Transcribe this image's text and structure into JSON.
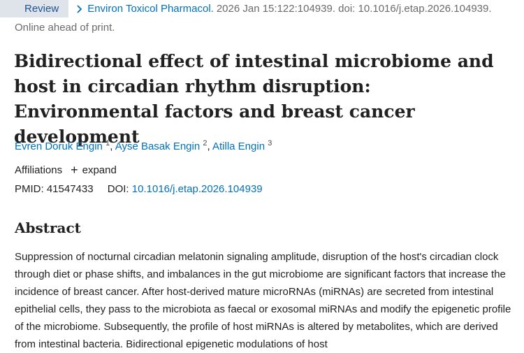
{
  "header": {
    "badge": "Review",
    "journal": "Environ Toxicol Pharmacol.",
    "citation": "2026 Jan 15:122:104939. doi: 10.1016/j.etap.2026.104939.",
    "status": "Online ahead of print."
  },
  "article": {
    "title": "Bidirectional effect of intestinal microbiome and host in circadian rhythm disruption: Environmental factors and breast cancer development",
    "authors": [
      {
        "name": "Evren Doruk Engin",
        "aff": "1"
      },
      {
        "name": "Ayse Basak Engin",
        "aff": "2"
      },
      {
        "name": "Atilla Engin",
        "aff": "3"
      }
    ],
    "affiliations_label": "Affiliations",
    "expand_label": "expand",
    "pmid_label": "PMID:",
    "pmid": "41547433",
    "doi_label": "DOI:",
    "doi": "10.1016/j.etap.2026.104939"
  },
  "abstract": {
    "heading": "Abstract",
    "text": "Suppression of nocturnal circadian melatonin signaling amplitude, disruption of the host's circadian clock through diet or phase shifts, and imbalances in the gut microbiome are significant factors that increase the incidence of breast cancer. After host-derived mature microRNAs (miRNAs) are secreted from intestinal epithelial cells, they pass to the microbiota as faecal or exosomal miRNAs and modify the epigenetic profile of the microbiome. Subsequently, the profile of host miRNAs is altered by metabolites, which are derived from intestinal bacteria. Bidirectional epigenetic modulations of host"
  },
  "icons": {
    "citation_link": "chevron-right-icon",
    "expand": "plus-icon"
  },
  "colors": {
    "link": "#0071bc",
    "badge_bg": "#dfe4ea",
    "badge_text": "#205493",
    "muted": "#6b6b6b"
  }
}
